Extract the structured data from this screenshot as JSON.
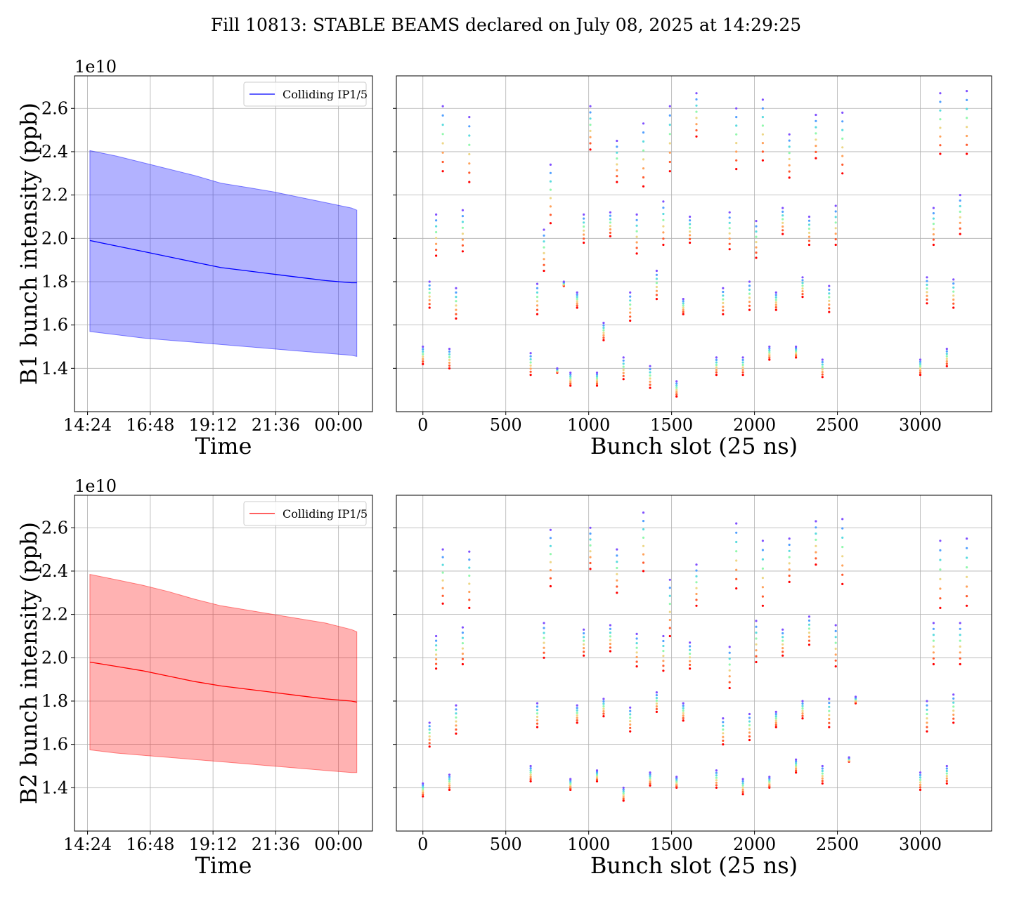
{
  "figure": {
    "suptitle": "Fill 10813: STABLE BEAMS declared on July 08, 2025 at 14:29:25"
  },
  "chart_data": [
    {
      "type": "area",
      "beam": "B1",
      "ylabel": "B1 bunch intensity (ppb)",
      "xlabel": "Time",
      "offset_text": "1e10",
      "legend": [
        "Colliding IP1/5"
      ],
      "legend_position": "upper right",
      "grid": true,
      "color": "#0000ff",
      "fill_color": "#0000ff",
      "fill_alpha": 0.3,
      "x_ticks": [
        14.4,
        16.8,
        19.2,
        21.6,
        24.0
      ],
      "x_tick_labels": [
        "14:24",
        "16:48",
        "19:12",
        "21:36",
        "00:00"
      ],
      "xlim": [
        13.9,
        25.3
      ],
      "y_ticks": [
        1.4,
        1.6,
        1.8,
        2.0,
        2.2,
        2.4,
        2.6
      ],
      "y_tick_labels": [
        "1.4",
        "1.6",
        "1.8",
        "2.0",
        "2.2",
        "2.4",
        "2.6"
      ],
      "ylim": [
        1.2,
        2.75
      ],
      "series": [
        {
          "role": "mean",
          "name": "Colliding IP1/5",
          "x": [
            14.49,
            15.5,
            16.5,
            17.5,
            18.5,
            19.5,
            20.5,
            21.5,
            22.5,
            23.5,
            24.5,
            24.7
          ],
          "y": [
            1.99,
            1.965,
            1.94,
            1.915,
            1.89,
            1.865,
            1.85,
            1.835,
            1.82,
            1.805,
            1.795,
            1.795
          ]
        },
        {
          "role": "max",
          "x": [
            14.49,
            15.5,
            16.5,
            17.5,
            18.5,
            19.5,
            20.5,
            21.5,
            22.5,
            23.5,
            24.5,
            24.7
          ],
          "y": [
            2.405,
            2.38,
            2.35,
            2.32,
            2.29,
            2.255,
            2.235,
            2.215,
            2.19,
            2.165,
            2.14,
            2.13
          ]
        },
        {
          "role": "min",
          "x": [
            14.49,
            15.5,
            16.5,
            17.5,
            18.5,
            19.5,
            20.5,
            21.5,
            22.5,
            23.5,
            24.5,
            24.7
          ],
          "y": [
            1.57,
            1.555,
            1.54,
            1.53,
            1.52,
            1.51,
            1.5,
            1.49,
            1.48,
            1.47,
            1.46,
            1.455
          ]
        }
      ]
    },
    {
      "type": "scatter",
      "beam": "B1",
      "xlabel": "Bunch slot (25 ns)",
      "grid": true,
      "x_ticks": [
        0,
        500,
        1000,
        1500,
        2000,
        2500,
        3000
      ],
      "x_tick_labels": [
        "0",
        "500",
        "1000",
        "1500",
        "2000",
        "2500",
        "3000"
      ],
      "xlim": [
        -160,
        3430
      ],
      "y_ticks": [
        1.4,
        1.6,
        1.8,
        2.0,
        2.2,
        2.4,
        2.6
      ],
      "ylim": [
        1.2,
        2.75
      ],
      "colormap": [
        "#ff0000",
        "#ff7f40",
        "#ffd080",
        "#80ffb4",
        "#40c0ff",
        "#8050ff"
      ],
      "groups": [
        {
          "x": 0,
          "lo": 1.42,
          "hi": 1.5
        },
        {
          "x": 40,
          "lo": 1.68,
          "hi": 1.8
        },
        {
          "x": 80,
          "lo": 1.92,
          "hi": 2.11
        },
        {
          "x": 120,
          "lo": 2.31,
          "hi": 2.61
        },
        {
          "x": 160,
          "lo": 1.4,
          "hi": 1.49
        },
        {
          "x": 200,
          "lo": 1.63,
          "hi": 1.77
        },
        {
          "x": 240,
          "lo": 1.94,
          "hi": 2.13
        },
        {
          "x": 280,
          "lo": 2.26,
          "hi": 2.56
        },
        {
          "x": 650,
          "lo": 1.37,
          "hi": 1.47
        },
        {
          "x": 690,
          "lo": 1.65,
          "hi": 1.79
        },
        {
          "x": 730,
          "lo": 1.85,
          "hi": 2.04
        },
        {
          "x": 770,
          "lo": 2.07,
          "hi": 2.34
        },
        {
          "x": 810,
          "lo": 1.38,
          "hi": 1.4
        },
        {
          "x": 850,
          "lo": 1.78,
          "hi": 1.8
        },
        {
          "x": 890,
          "lo": 1.32,
          "hi": 1.38
        },
        {
          "x": 930,
          "lo": 1.68,
          "hi": 1.75
        },
        {
          "x": 970,
          "lo": 1.98,
          "hi": 2.11
        },
        {
          "x": 1010,
          "lo": 2.41,
          "hi": 2.61
        },
        {
          "x": 1050,
          "lo": 1.32,
          "hi": 1.38
        },
        {
          "x": 1090,
          "lo": 1.53,
          "hi": 1.61
        },
        {
          "x": 1130,
          "lo": 2.01,
          "hi": 2.12
        },
        {
          "x": 1170,
          "lo": 2.26,
          "hi": 2.45
        },
        {
          "x": 1210,
          "lo": 1.35,
          "hi": 1.45
        },
        {
          "x": 1250,
          "lo": 1.62,
          "hi": 1.75
        },
        {
          "x": 1290,
          "lo": 1.93,
          "hi": 2.11
        },
        {
          "x": 1330,
          "lo": 2.24,
          "hi": 2.53
        },
        {
          "x": 1370,
          "lo": 1.31,
          "hi": 1.41
        },
        {
          "x": 1410,
          "lo": 1.72,
          "hi": 1.85
        },
        {
          "x": 1450,
          "lo": 1.97,
          "hi": 2.17
        },
        {
          "x": 1490,
          "lo": 2.31,
          "hi": 2.61
        },
        {
          "x": 1530,
          "lo": 1.27,
          "hi": 1.34
        },
        {
          "x": 1570,
          "lo": 1.65,
          "hi": 1.72
        },
        {
          "x": 1610,
          "lo": 1.98,
          "hi": 2.1
        },
        {
          "x": 1650,
          "lo": 2.47,
          "hi": 2.67
        },
        {
          "x": 1770,
          "lo": 1.37,
          "hi": 1.45
        },
        {
          "x": 1810,
          "lo": 1.65,
          "hi": 1.77
        },
        {
          "x": 1850,
          "lo": 1.95,
          "hi": 2.12
        },
        {
          "x": 1890,
          "lo": 2.32,
          "hi": 2.6
        },
        {
          "x": 1930,
          "lo": 1.37,
          "hi": 1.45
        },
        {
          "x": 1970,
          "lo": 1.67,
          "hi": 1.8
        },
        {
          "x": 2010,
          "lo": 1.91,
          "hi": 2.08
        },
        {
          "x": 2050,
          "lo": 2.36,
          "hi": 2.64
        },
        {
          "x": 2090,
          "lo": 1.44,
          "hi": 1.5
        },
        {
          "x": 2130,
          "lo": 1.67,
          "hi": 1.75
        },
        {
          "x": 2170,
          "lo": 2.02,
          "hi": 2.14
        },
        {
          "x": 2210,
          "lo": 2.28,
          "hi": 2.48
        },
        {
          "x": 2250,
          "lo": 1.45,
          "hi": 1.5
        },
        {
          "x": 2290,
          "lo": 1.73,
          "hi": 1.82
        },
        {
          "x": 2330,
          "lo": 1.97,
          "hi": 2.1
        },
        {
          "x": 2370,
          "lo": 2.37,
          "hi": 2.57
        },
        {
          "x": 2410,
          "lo": 1.36,
          "hi": 1.44
        },
        {
          "x": 2450,
          "lo": 1.66,
          "hi": 1.78
        },
        {
          "x": 2490,
          "lo": 1.97,
          "hi": 2.15
        },
        {
          "x": 2530,
          "lo": 2.3,
          "hi": 2.58
        },
        {
          "x": 3000,
          "lo": 1.37,
          "hi": 1.44
        },
        {
          "x": 3040,
          "lo": 1.7,
          "hi": 1.82
        },
        {
          "x": 3080,
          "lo": 1.97,
          "hi": 2.14
        },
        {
          "x": 3120,
          "lo": 2.39,
          "hi": 2.67
        },
        {
          "x": 3160,
          "lo": 1.41,
          "hi": 1.49
        },
        {
          "x": 3200,
          "lo": 1.68,
          "hi": 1.81
        },
        {
          "x": 3240,
          "lo": 2.02,
          "hi": 2.2
        },
        {
          "x": 3280,
          "lo": 2.39,
          "hi": 2.68
        }
      ]
    },
    {
      "type": "area",
      "beam": "B2",
      "ylabel": "B2 bunch intensity (ppb)",
      "xlabel": "Time",
      "offset_text": "1e10",
      "legend": [
        "Colliding IP1/5"
      ],
      "legend_position": "upper right",
      "grid": true,
      "color": "#ff0000",
      "fill_color": "#ff0000",
      "fill_alpha": 0.3,
      "x_ticks": [
        14.4,
        16.8,
        19.2,
        21.6,
        24.0
      ],
      "x_tick_labels": [
        "14:24",
        "16:48",
        "19:12",
        "21:36",
        "00:00"
      ],
      "xlim": [
        13.9,
        25.3
      ],
      "y_ticks": [
        1.4,
        1.6,
        1.8,
        2.0,
        2.2,
        2.4,
        2.6
      ],
      "y_tick_labels": [
        "1.4",
        "1.6",
        "1.8",
        "2.0",
        "2.2",
        "2.4",
        "2.6"
      ],
      "ylim": [
        1.2,
        2.75
      ],
      "series": [
        {
          "role": "mean",
          "name": "Colliding IP1/5",
          "x": [
            14.49,
            15.5,
            16.5,
            17.5,
            18.5,
            19.5,
            20.5,
            21.5,
            22.5,
            23.5,
            24.5,
            24.7
          ],
          "y": [
            1.98,
            1.96,
            1.94,
            1.915,
            1.89,
            1.87,
            1.855,
            1.84,
            1.825,
            1.81,
            1.8,
            1.795
          ]
        },
        {
          "role": "max",
          "x": [
            14.49,
            15.5,
            16.5,
            17.5,
            18.5,
            19.5,
            20.5,
            21.5,
            22.5,
            23.5,
            24.5,
            24.7
          ],
          "y": [
            2.385,
            2.36,
            2.335,
            2.305,
            2.27,
            2.24,
            2.22,
            2.2,
            2.18,
            2.16,
            2.13,
            2.12
          ]
        },
        {
          "role": "min",
          "x": [
            14.49,
            15.5,
            16.5,
            17.5,
            18.5,
            19.5,
            20.5,
            21.5,
            22.5,
            23.5,
            24.5,
            24.7
          ],
          "y": [
            1.575,
            1.56,
            1.55,
            1.54,
            1.53,
            1.52,
            1.51,
            1.5,
            1.49,
            1.48,
            1.47,
            1.47
          ]
        }
      ]
    },
    {
      "type": "scatter",
      "beam": "B2",
      "xlabel": "Bunch slot (25 ns)",
      "grid": true,
      "x_ticks": [
        0,
        500,
        1000,
        1500,
        2000,
        2500,
        3000
      ],
      "x_tick_labels": [
        "0",
        "500",
        "1000",
        "1500",
        "2000",
        "2500",
        "3000"
      ],
      "xlim": [
        -160,
        3430
      ],
      "y_ticks": [
        1.4,
        1.6,
        1.8,
        2.0,
        2.2,
        2.4,
        2.6
      ],
      "ylim": [
        1.2,
        2.75
      ],
      "colormap": [
        "#ff0000",
        "#ff7f40",
        "#ffd080",
        "#80ffb4",
        "#40c0ff",
        "#8050ff"
      ],
      "groups": [
        {
          "x": 0,
          "lo": 1.36,
          "hi": 1.42
        },
        {
          "x": 40,
          "lo": 1.59,
          "hi": 1.7
        },
        {
          "x": 80,
          "lo": 1.95,
          "hi": 2.1
        },
        {
          "x": 120,
          "lo": 2.25,
          "hi": 2.5
        },
        {
          "x": 160,
          "lo": 1.39,
          "hi": 1.46
        },
        {
          "x": 200,
          "lo": 1.65,
          "hi": 1.78
        },
        {
          "x": 240,
          "lo": 1.97,
          "hi": 2.14
        },
        {
          "x": 280,
          "lo": 2.23,
          "hi": 2.49
        },
        {
          "x": 650,
          "lo": 1.43,
          "hi": 1.5
        },
        {
          "x": 690,
          "lo": 1.68,
          "hi": 1.79
        },
        {
          "x": 730,
          "lo": 2.0,
          "hi": 2.16
        },
        {
          "x": 770,
          "lo": 2.33,
          "hi": 2.59
        },
        {
          "x": 890,
          "lo": 1.39,
          "hi": 1.44
        },
        {
          "x": 930,
          "lo": 1.7,
          "hi": 1.78
        },
        {
          "x": 970,
          "lo": 2.01,
          "hi": 2.13
        },
        {
          "x": 1010,
          "lo": 2.41,
          "hi": 2.6
        },
        {
          "x": 1050,
          "lo": 1.43,
          "hi": 1.48
        },
        {
          "x": 1090,
          "lo": 1.73,
          "hi": 1.81
        },
        {
          "x": 1130,
          "lo": 2.03,
          "hi": 2.15
        },
        {
          "x": 1170,
          "lo": 2.3,
          "hi": 2.5
        },
        {
          "x": 1210,
          "lo": 1.34,
          "hi": 1.4
        },
        {
          "x": 1250,
          "lo": 1.66,
          "hi": 1.77
        },
        {
          "x": 1290,
          "lo": 1.96,
          "hi": 2.11
        },
        {
          "x": 1330,
          "lo": 2.4,
          "hi": 2.67
        },
        {
          "x": 1370,
          "lo": 1.41,
          "hi": 1.47
        },
        {
          "x": 1410,
          "lo": 1.75,
          "hi": 1.84
        },
        {
          "x": 1450,
          "lo": 1.94,
          "hi": 2.1
        },
        {
          "x": 1490,
          "lo": 2.1,
          "hi": 2.36
        },
        {
          "x": 1530,
          "lo": 1.4,
          "hi": 1.45
        },
        {
          "x": 1570,
          "lo": 1.71,
          "hi": 1.79
        },
        {
          "x": 1610,
          "lo": 1.95,
          "hi": 2.07
        },
        {
          "x": 1650,
          "lo": 2.24,
          "hi": 2.43
        },
        {
          "x": 1770,
          "lo": 1.4,
          "hi": 1.48
        },
        {
          "x": 1810,
          "lo": 1.6,
          "hi": 1.72
        },
        {
          "x": 1850,
          "lo": 1.86,
          "hi": 2.05
        },
        {
          "x": 1890,
          "lo": 2.32,
          "hi": 2.62
        },
        {
          "x": 1930,
          "lo": 1.37,
          "hi": 1.44
        },
        {
          "x": 1970,
          "lo": 1.62,
          "hi": 1.74
        },
        {
          "x": 2010,
          "lo": 1.98,
          "hi": 2.17
        },
        {
          "x": 2050,
          "lo": 2.24,
          "hi": 2.54
        },
        {
          "x": 2090,
          "lo": 1.4,
          "hi": 1.45
        },
        {
          "x": 2130,
          "lo": 1.68,
          "hi": 1.75
        },
        {
          "x": 2170,
          "lo": 2.01,
          "hi": 2.13
        },
        {
          "x": 2210,
          "lo": 2.35,
          "hi": 2.55
        },
        {
          "x": 2250,
          "lo": 1.47,
          "hi": 1.53
        },
        {
          "x": 2290,
          "lo": 1.72,
          "hi": 1.8
        },
        {
          "x": 2330,
          "lo": 2.06,
          "hi": 2.19
        },
        {
          "x": 2370,
          "lo": 2.43,
          "hi": 2.63
        },
        {
          "x": 2410,
          "lo": 1.42,
          "hi": 1.5
        },
        {
          "x": 2450,
          "lo": 1.68,
          "hi": 1.81
        },
        {
          "x": 2490,
          "lo": 1.96,
          "hi": 2.15
        },
        {
          "x": 2530,
          "lo": 2.34,
          "hi": 2.64
        },
        {
          "x": 2570,
          "lo": 1.52,
          "hi": 1.54
        },
        {
          "x": 2610,
          "lo": 1.79,
          "hi": 1.82
        },
        {
          "x": 3000,
          "lo": 1.39,
          "hi": 1.47
        },
        {
          "x": 3040,
          "lo": 1.66,
          "hi": 1.8
        },
        {
          "x": 3080,
          "lo": 1.97,
          "hi": 2.16
        },
        {
          "x": 3120,
          "lo": 2.23,
          "hi": 2.54
        },
        {
          "x": 3160,
          "lo": 1.42,
          "hi": 1.5
        },
        {
          "x": 3200,
          "lo": 1.7,
          "hi": 1.83
        },
        {
          "x": 3240,
          "lo": 1.97,
          "hi": 2.16
        },
        {
          "x": 3280,
          "lo": 2.24,
          "hi": 2.55
        }
      ]
    }
  ]
}
